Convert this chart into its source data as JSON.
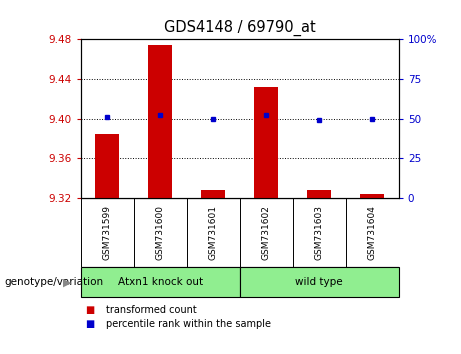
{
  "title": "GDS4148 / 69790_at",
  "samples": [
    "GSM731599",
    "GSM731600",
    "GSM731601",
    "GSM731602",
    "GSM731603",
    "GSM731604"
  ],
  "transformed_counts": [
    9.385,
    9.474,
    9.328,
    9.432,
    9.328,
    9.324
  ],
  "percentile_ranks": [
    51,
    52,
    50,
    52,
    49,
    50
  ],
  "ylim_left": [
    9.32,
    9.48
  ],
  "ylim_right": [
    0,
    100
  ],
  "yticks_left": [
    9.32,
    9.36,
    9.4,
    9.44,
    9.48
  ],
  "yticks_right": [
    0,
    25,
    50,
    75,
    100
  ],
  "ytick_labels_right": [
    "0",
    "25",
    "50",
    "75",
    "100%"
  ],
  "hlines": [
    9.36,
    9.4,
    9.44
  ],
  "bar_color": "#cc0000",
  "marker_color": "#0000cc",
  "bar_bottom": 9.32,
  "group1_label": "Atxn1 knock out",
  "group2_label": "wild type",
  "group1_indices": [
    0,
    1,
    2
  ],
  "group2_indices": [
    3,
    4,
    5
  ],
  "group_color": "#90ee90",
  "xlabel_left": "genotype/variation",
  "legend_items": [
    "transformed count",
    "percentile rank within the sample"
  ],
  "legend_colors": [
    "#cc0000",
    "#0000cc"
  ],
  "tick_color_left": "#cc0000",
  "tick_color_right": "#0000cc",
  "background_color": "#ffffff",
  "plot_bg": "#ffffff",
  "sample_bg": "#c8c8c8"
}
